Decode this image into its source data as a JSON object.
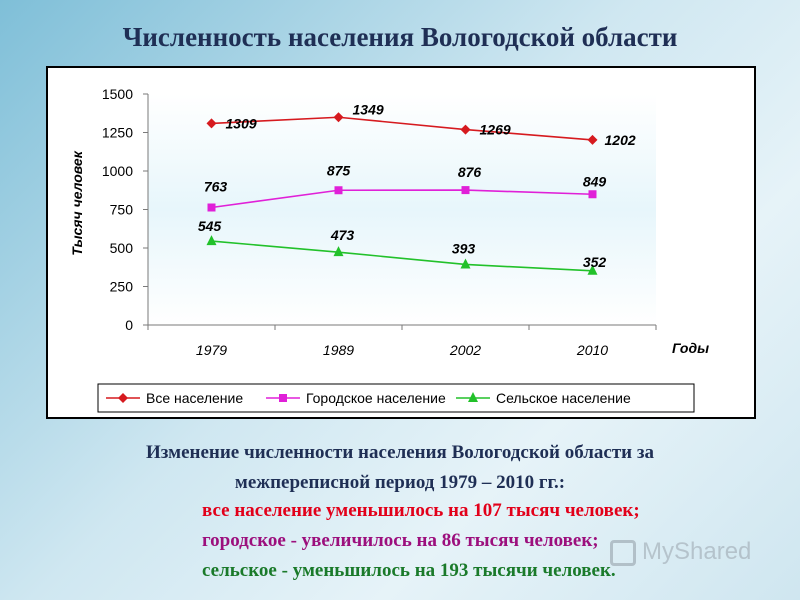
{
  "page": {
    "title": "Численность населения Вологодской области"
  },
  "summary": {
    "line1": "Изменение численности населения Вологодской области за",
    "line2": "межпереписной период 1979 – 2010 гг.:",
    "items": [
      {
        "text": "все население уменьшилось на 107 тысяч человек;",
        "color": "#e2001a"
      },
      {
        "text": "городское - увеличилось на 86 тысяч человек;",
        "color": "#9c0f7d"
      },
      {
        "text": "сельское - уменьшилось на 193 тысячи человек.",
        "color": "#1a7a2a"
      }
    ]
  },
  "watermark": {
    "text": "MyShared",
    "icon": "presentation-icon"
  },
  "chart_data": {
    "type": "line",
    "categories": [
      "1979",
      "1989",
      "2002",
      "2010"
    ],
    "xlabel": "Годы",
    "ylabel": "Тысяч человек",
    "ylim": [
      0,
      1500
    ],
    "yticks": [
      0,
      250,
      500,
      750,
      1000,
      1250,
      1500
    ],
    "grid": false,
    "legend_position": "bottom",
    "series": [
      {
        "name": "Все население",
        "values": [
          1309,
          1349,
          1269,
          1202
        ],
        "color": "#d61a1f",
        "marker": "diamond"
      },
      {
        "name": "Городское население",
        "values": [
          763,
          875,
          876,
          849
        ],
        "color": "#e020d8",
        "marker": "square"
      },
      {
        "name": "Сельское население",
        "values": [
          545,
          473,
          393,
          352
        ],
        "color": "#22c12a",
        "marker": "triangle"
      }
    ]
  }
}
